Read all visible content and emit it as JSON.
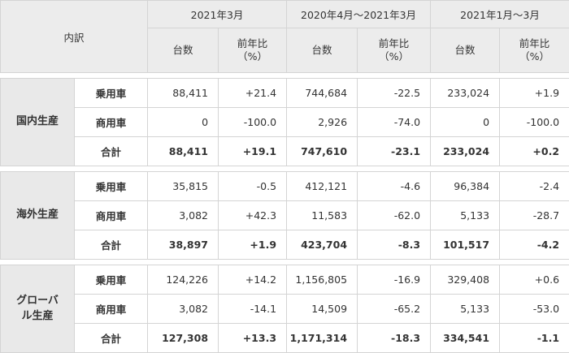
{
  "header": {
    "breakdown": "内訳",
    "periods": [
      "2021年3月",
      "2020年4月～2021年3月",
      "2021年1月～3月"
    ],
    "units": "台数",
    "yoy_line1": "前年比",
    "yoy_line2": "（%）"
  },
  "groups": [
    {
      "name_lines": [
        "国内生産"
      ],
      "rows": [
        {
          "label": "乗用車",
          "total": false,
          "values": [
            "88,411",
            "+21.4",
            "744,684",
            "-22.5",
            "233,024",
            "+1.9"
          ]
        },
        {
          "label": "商用車",
          "total": false,
          "values": [
            "0",
            "-100.0",
            "2,926",
            "-74.0",
            "0",
            "-100.0"
          ]
        },
        {
          "label": "合計",
          "total": true,
          "values": [
            "88,411",
            "+19.1",
            "747,610",
            "-23.1",
            "233,024",
            "+0.2"
          ]
        }
      ]
    },
    {
      "name_lines": [
        "海外生産"
      ],
      "rows": [
        {
          "label": "乗用車",
          "total": false,
          "values": [
            "35,815",
            "-0.5",
            "412,121",
            "-4.6",
            "96,384",
            "-2.4"
          ]
        },
        {
          "label": "商用車",
          "total": false,
          "values": [
            "3,082",
            "+42.3",
            "11,583",
            "-62.0",
            "5,133",
            "-28.7"
          ]
        },
        {
          "label": "合計",
          "total": true,
          "values": [
            "38,897",
            "+1.9",
            "423,704",
            "-8.3",
            "101,517",
            "-4.2"
          ]
        }
      ]
    },
    {
      "name_lines": [
        "グローバ",
        "ル生産"
      ],
      "rows": [
        {
          "label": "乗用車",
          "total": false,
          "values": [
            "124,226",
            "+14.2",
            "1,156,805",
            "-16.9",
            "329,408",
            "+0.6"
          ]
        },
        {
          "label": "商用車",
          "total": false,
          "values": [
            "3,082",
            "-14.1",
            "14,509",
            "-65.2",
            "5,133",
            "-53.0"
          ]
        },
        {
          "label": "合計",
          "total": true,
          "values": [
            "127,308",
            "+13.3",
            "1,171,314",
            "-18.3",
            "334,541",
            "-1.1"
          ]
        }
      ]
    }
  ]
}
